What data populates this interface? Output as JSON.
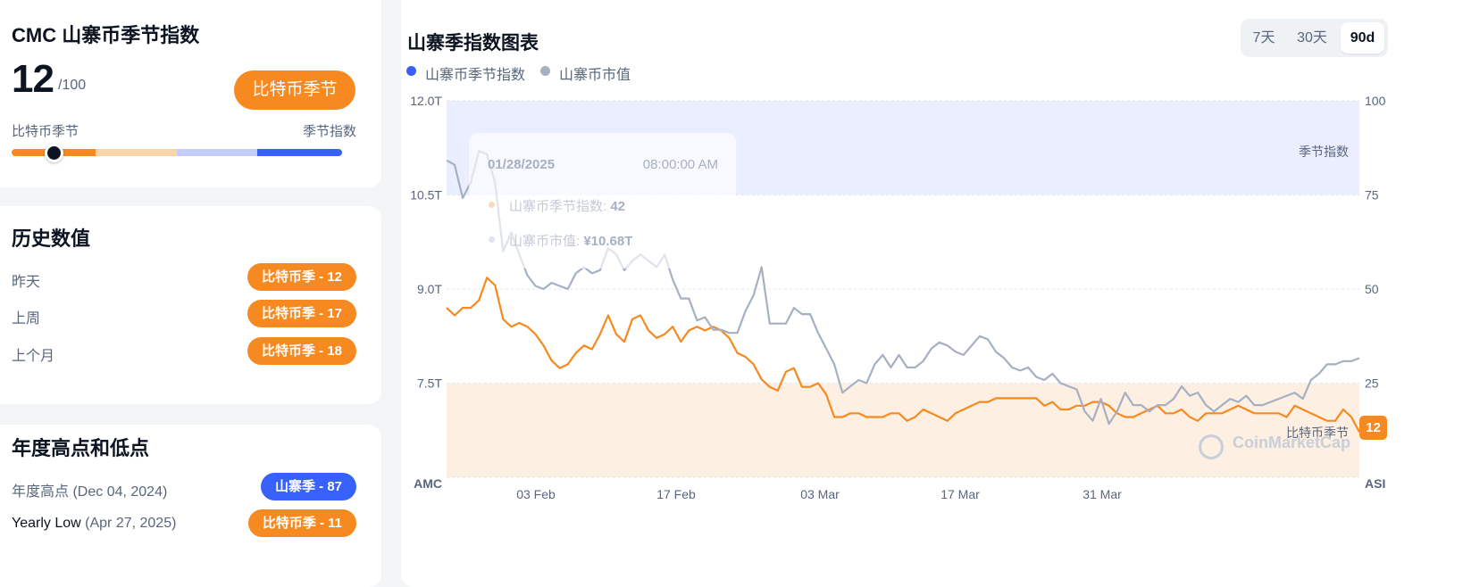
{
  "index_card": {
    "title": "CMC 山寨币季节指数",
    "score": "12",
    "total": "/100",
    "season_button": "比特币季节",
    "left_label": "比特币季节",
    "right_label": "季节指数",
    "score_value": 12
  },
  "history": {
    "title": "历史数值",
    "rows": [
      {
        "label": "昨天",
        "badge": "比特币季 - 12"
      },
      {
        "label": "上周",
        "badge": "比特币季 - 17"
      },
      {
        "label": "上个月",
        "badge": "比特币季 - 18"
      }
    ]
  },
  "yearly": {
    "title": "年度高点和低点",
    "high_label": "年度高点",
    "high_date": "(Dec 04, 2024)",
    "high_badge": "山寨季 - 87",
    "low_label": "Yearly Low",
    "low_date": "(Apr 27, 2025)",
    "low_badge": "比特币季 - 11"
  },
  "chart_panel": {
    "title": "山寨季指数图表",
    "ranges": [
      "7天",
      "30天",
      "90d"
    ],
    "active_range": "90d",
    "legend": [
      "山寨币季节指数",
      "山寨币市值"
    ],
    "tooltip": {
      "date": "01/28/2025",
      "time": "08:00:00 AM",
      "index_label": "山寨币季节指数:",
      "index_value": "42",
      "cap_label": "山寨币市值:",
      "cap_value": "¥10.68T"
    },
    "zone_top_label": "季节指数",
    "zone_bottom_label": "比特币季节",
    "left_axis_title": "AMC",
    "right_axis_title": "ASI",
    "watermark": "CoinMarketCap",
    "end_badge": "12"
  },
  "colors": {
    "orange": "#f6891f",
    "blue": "#3861fb",
    "gray_line": "#a6b0c3",
    "alt_zone": "#eaeefe",
    "btc_zone": "#fdf0e3"
  },
  "chart_data": {
    "type": "line",
    "x_ticks": [
      "03 Feb",
      "17 Feb",
      "03 Mar",
      "17 Mar",
      "31 Mar"
    ],
    "y_left_ticks": [
      "12.0T",
      "10.5T",
      "9.0T",
      "7.5T"
    ],
    "y_right_ticks": [
      "100",
      "75",
      "50",
      "25"
    ],
    "y_left_lim": [
      6.0,
      12.0
    ],
    "y_right_lim": [
      0,
      100
    ],
    "series": [
      {
        "name": "山寨币季节指数",
        "axis": "right",
        "values": [
          45,
          43,
          45,
          45,
          47,
          53,
          51,
          42,
          40,
          41,
          40,
          38,
          35,
          31,
          29,
          30,
          33,
          35,
          34,
          38,
          43,
          38,
          36,
          42,
          43,
          39,
          37,
          38,
          40,
          36,
          39,
          40,
          39,
          40,
          39,
          37,
          33,
          32,
          30,
          26,
          24,
          23,
          28,
          29,
          24,
          24,
          25,
          22,
          16,
          16,
          17,
          17,
          16,
          16,
          16,
          17,
          17,
          15,
          16,
          18,
          17,
          16,
          15,
          17,
          18,
          19,
          20,
          20,
          21,
          21,
          21,
          21,
          21,
          21,
          19,
          20,
          18,
          18,
          19,
          19,
          20,
          20,
          19,
          17,
          16,
          16,
          17,
          18,
          19,
          17,
          17,
          18,
          16,
          15,
          17,
          17,
          17,
          18,
          19,
          18,
          17,
          17,
          17,
          17,
          16,
          19,
          18,
          17,
          16,
          15,
          15,
          18,
          16,
          12
        ]
      },
      {
        "name": "山寨币市值",
        "axis": "left",
        "values": [
          11.05,
          10.98,
          10.45,
          10.7,
          11.2,
          11.15,
          10.7,
          9.6,
          9.9,
          9.55,
          9.22,
          9.05,
          9.0,
          9.1,
          9.05,
          9.0,
          9.25,
          9.35,
          9.25,
          9.3,
          9.65,
          9.55,
          9.3,
          9.45,
          9.55,
          9.45,
          9.35,
          9.55,
          9.15,
          8.85,
          8.85,
          8.5,
          8.55,
          8.35,
          8.35,
          8.3,
          8.3,
          8.65,
          8.9,
          9.35,
          8.45,
          8.45,
          8.45,
          8.7,
          8.6,
          8.6,
          8.3,
          8.05,
          7.8,
          7.35,
          7.45,
          7.55,
          7.5,
          7.8,
          7.95,
          7.75,
          7.95,
          7.75,
          7.75,
          7.85,
          8.05,
          8.15,
          8.1,
          8.0,
          7.95,
          8.1,
          8.25,
          8.2,
          8.0,
          7.9,
          7.75,
          7.7,
          7.75,
          7.6,
          7.55,
          7.65,
          7.5,
          7.45,
          7.4,
          7.05,
          6.9,
          7.25,
          6.85,
          7.05,
          7.35,
          7.15,
          7.15,
          7.05,
          7.15,
          7.15,
          7.25,
          7.45,
          7.3,
          7.35,
          7.15,
          7.05,
          7.15,
          7.25,
          7.2,
          7.3,
          7.15,
          7.15,
          7.2,
          7.25,
          7.3,
          7.35,
          7.25,
          7.55,
          7.65,
          7.8,
          7.8,
          7.85,
          7.85,
          7.9
        ]
      }
    ],
    "bands": [
      {
        "label": "季节指数",
        "from": 75,
        "to": 100
      },
      {
        "label": "比特币季节",
        "from": 0,
        "to": 25
      }
    ],
    "grid": true,
    "legend_position": "top-left"
  }
}
